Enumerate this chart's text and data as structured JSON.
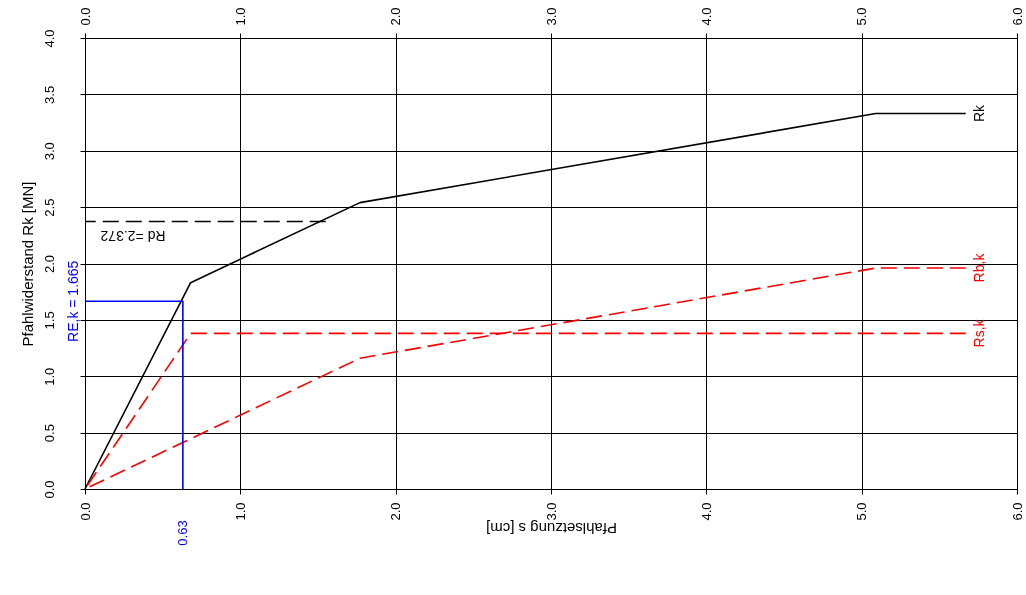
{
  "chart_data": {
    "type": "line",
    "xlabel": "Pfahlsetzung s [cm]",
    "ylabel": "Pfahlwiderstand Rk [MN]",
    "xlim": [
      0,
      6
    ],
    "xticks": [
      {
        "value": 0,
        "label": "0.0"
      },
      {
        "value": 1,
        "label": "1.0"
      },
      {
        "value": 2,
        "label": "2.0"
      },
      {
        "value": 3,
        "label": "3.0"
      },
      {
        "value": 4,
        "label": "4.0"
      },
      {
        "value": 5,
        "label": "5.0"
      },
      {
        "value": 6,
        "label": "6.0"
      }
    ],
    "x2lim": [
      0,
      6
    ],
    "x2ticks": [
      {
        "value": 0,
        "label": "0.0"
      },
      {
        "value": 1,
        "label": "1.0"
      },
      {
        "value": 2,
        "label": "2.0"
      },
      {
        "value": 3,
        "label": "3.0"
      },
      {
        "value": 4,
        "label": "4.0"
      },
      {
        "value": 5,
        "label": "5.0"
      },
      {
        "value": 6,
        "label": "6.0"
      }
    ],
    "ylim": [
      0,
      4
    ],
    "yticks": [
      {
        "value": 0,
        "label": "0.0"
      },
      {
        "value": 0.5,
        "label": "0.5"
      },
      {
        "value": 1,
        "label": "1.0"
      },
      {
        "value": 1.5,
        "label": "1.5"
      },
      {
        "value": 2,
        "label": "2.0"
      },
      {
        "value": 2.5,
        "label": "2.5"
      },
      {
        "value": 3,
        "label": "3.0"
      },
      {
        "value": 3.5,
        "label": "3.5"
      },
      {
        "value": 4,
        "label": "4.0"
      }
    ],
    "grid": true,
    "series": [
      {
        "name": "Rk",
        "color": "#000000",
        "line_style": "solid",
        "x": [
          0,
          0.68,
          1.77,
          5.09,
          5.67
        ],
        "values": [
          0,
          1.83,
          2.54,
          3.33,
          3.33
        ]
      },
      {
        "name": "Rb,k",
        "color": "#ff0000",
        "line_style": "dashed",
        "x": [
          0,
          1.77,
          5.09,
          5.67
        ],
        "values": [
          0,
          1.16,
          1.96,
          1.96
        ]
      },
      {
        "name": "Rs,k",
        "color": "#ff0000",
        "line_style": "dashed",
        "x": [
          0,
          0.68,
          5.67
        ],
        "values": [
          0,
          1.38,
          1.38
        ]
      },
      {
        "color": "#0000ff",
        "line_style": "solid",
        "x": [
          0,
          0.63,
          0.63
        ],
        "values": [
          1.665,
          1.665,
          0
        ]
      },
      {
        "color": "#000000",
        "line_style": "dashed",
        "x": [
          0,
          1.55
        ],
        "values": [
          2.372,
          2.372
        ]
      }
    ],
    "annotations": [
      {
        "text": "RE,k = 1.665",
        "x": 0,
        "y": 1.665
      },
      {
        "text": "Rd =2.372",
        "x": 0.1,
        "y": 2.372
      },
      {
        "text": "0.63",
        "x": 0.63,
        "y": 0
      }
    ]
  }
}
